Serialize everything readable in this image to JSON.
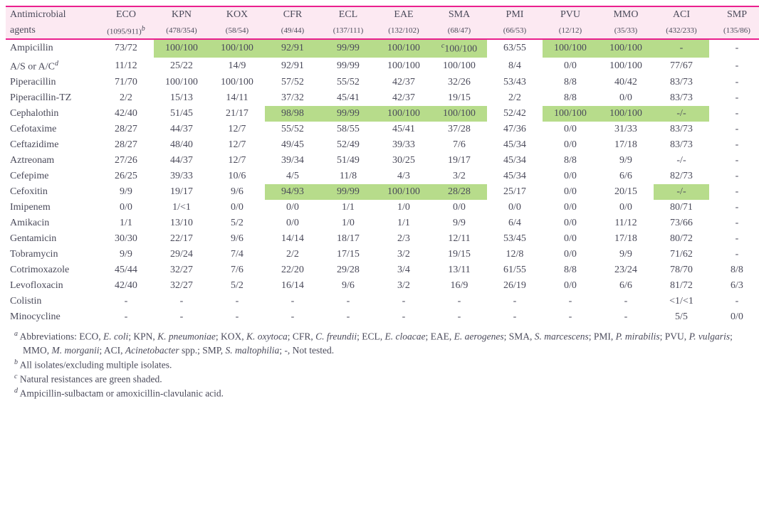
{
  "header": {
    "label_line1": "Antimicrobial",
    "label_line2": "agents",
    "cols": [
      {
        "code": "ECO",
        "n": "(1095/911)",
        "sup": "b"
      },
      {
        "code": "KPN",
        "n": "(478/354)",
        "sup": ""
      },
      {
        "code": "KOX",
        "n": "(58/54)",
        "sup": ""
      },
      {
        "code": "CFR",
        "n": "(49/44)",
        "sup": ""
      },
      {
        "code": "ECL",
        "n": "(137/111)",
        "sup": ""
      },
      {
        "code": "EAE",
        "n": "(132/102)",
        "sup": ""
      },
      {
        "code": "SMA",
        "n": "(68/47)",
        "sup": ""
      },
      {
        "code": "PMI",
        "n": "(66/53)",
        "sup": ""
      },
      {
        "code": "PVU",
        "n": "(12/12)",
        "sup": ""
      },
      {
        "code": "MMO",
        "n": "(35/33)",
        "sup": ""
      },
      {
        "code": "ACI",
        "n": "(432/233)",
        "sup": ""
      },
      {
        "code": "SMP",
        "n": "(135/86)",
        "sup": ""
      }
    ]
  },
  "rows": [
    {
      "agent": "Ampicillin",
      "cells": [
        {
          "v": "73/72"
        },
        {
          "v": "100/100",
          "hl": true
        },
        {
          "v": "100/100",
          "hl": true
        },
        {
          "v": "92/91",
          "hl": true
        },
        {
          "v": "99/99",
          "hl": true
        },
        {
          "v": "100/100",
          "hl": true
        },
        {
          "v": "100/100",
          "hl": true,
          "presup": "c"
        },
        {
          "v": "63/55"
        },
        {
          "v": "100/100",
          "hl": true
        },
        {
          "v": "100/100",
          "hl": true
        },
        {
          "v": "-",
          "hl": true
        },
        {
          "v": "-"
        }
      ]
    },
    {
      "agent": "A/S or A/C",
      "sup": "d",
      "cells": [
        {
          "v": "11/12"
        },
        {
          "v": "25/22"
        },
        {
          "v": "14/9"
        },
        {
          "v": "92/91"
        },
        {
          "v": "99/99"
        },
        {
          "v": "100/100"
        },
        {
          "v": "100/100"
        },
        {
          "v": "8/4"
        },
        {
          "v": "0/0"
        },
        {
          "v": "100/100"
        },
        {
          "v": "77/67"
        },
        {
          "v": "-"
        }
      ]
    },
    {
      "agent": "Piperacillin",
      "cells": [
        {
          "v": "71/70"
        },
        {
          "v": "100/100"
        },
        {
          "v": "100/100"
        },
        {
          "v": "57/52"
        },
        {
          "v": "55/52"
        },
        {
          "v": "42/37"
        },
        {
          "v": "32/26"
        },
        {
          "v": "53/43"
        },
        {
          "v": "8/8"
        },
        {
          "v": "40/42"
        },
        {
          "v": "83/73"
        },
        {
          "v": "-"
        }
      ]
    },
    {
      "agent": "Piperacillin-TZ",
      "cells": [
        {
          "v": "2/2"
        },
        {
          "v": "15/13"
        },
        {
          "v": "14/11"
        },
        {
          "v": "37/32"
        },
        {
          "v": "45/41"
        },
        {
          "v": "42/37"
        },
        {
          "v": "19/15"
        },
        {
          "v": "2/2"
        },
        {
          "v": "8/8"
        },
        {
          "v": "0/0"
        },
        {
          "v": "83/73"
        },
        {
          "v": "-"
        }
      ]
    },
    {
      "agent": "Cephalothin",
      "cells": [
        {
          "v": "42/40"
        },
        {
          "v": "51/45"
        },
        {
          "v": "21/17"
        },
        {
          "v": "98/98",
          "hl": true
        },
        {
          "v": "99/99",
          "hl": true
        },
        {
          "v": "100/100",
          "hl": true
        },
        {
          "v": "100/100",
          "hl": true
        },
        {
          "v": "52/42"
        },
        {
          "v": "100/100",
          "hl": true
        },
        {
          "v": "100/100",
          "hl": true
        },
        {
          "v": "-/-",
          "hl": true
        },
        {
          "v": "-"
        }
      ]
    },
    {
      "agent": "Cefotaxime",
      "cells": [
        {
          "v": "28/27"
        },
        {
          "v": "44/37"
        },
        {
          "v": "12/7"
        },
        {
          "v": "55/52"
        },
        {
          "v": "58/55"
        },
        {
          "v": "45/41"
        },
        {
          "v": "37/28"
        },
        {
          "v": "47/36"
        },
        {
          "v": "0/0"
        },
        {
          "v": "31/33"
        },
        {
          "v": "83/73"
        },
        {
          "v": "-"
        }
      ]
    },
    {
      "agent": "Ceftazidime",
      "cells": [
        {
          "v": "28/27"
        },
        {
          "v": "48/40"
        },
        {
          "v": "12/7"
        },
        {
          "v": "49/45"
        },
        {
          "v": "52/49"
        },
        {
          "v": "39/33"
        },
        {
          "v": "7/6"
        },
        {
          "v": "45/34"
        },
        {
          "v": "0/0"
        },
        {
          "v": "17/18"
        },
        {
          "v": "83/73"
        },
        {
          "v": "-"
        }
      ]
    },
    {
      "agent": "Aztreonam",
      "cells": [
        {
          "v": "27/26"
        },
        {
          "v": "44/37"
        },
        {
          "v": "12/7"
        },
        {
          "v": "39/34"
        },
        {
          "v": "51/49"
        },
        {
          "v": "30/25"
        },
        {
          "v": "19/17"
        },
        {
          "v": "45/34"
        },
        {
          "v": "8/8"
        },
        {
          "v": "9/9"
        },
        {
          "v": "-/-"
        },
        {
          "v": "-"
        }
      ]
    },
    {
      "agent": "Cefepime",
      "cells": [
        {
          "v": "26/25"
        },
        {
          "v": "39/33"
        },
        {
          "v": "10/6"
        },
        {
          "v": "4/5"
        },
        {
          "v": "11/8"
        },
        {
          "v": "4/3"
        },
        {
          "v": "3/2"
        },
        {
          "v": "45/34"
        },
        {
          "v": "0/0"
        },
        {
          "v": "6/6"
        },
        {
          "v": "82/73"
        },
        {
          "v": "-"
        }
      ]
    },
    {
      "agent": "Cefoxitin",
      "cells": [
        {
          "v": "9/9"
        },
        {
          "v": "19/17"
        },
        {
          "v": "9/6"
        },
        {
          "v": "94/93",
          "hl": true
        },
        {
          "v": "99/99",
          "hl": true
        },
        {
          "v": "100/100",
          "hl": true
        },
        {
          "v": "28/28",
          "hl": true
        },
        {
          "v": "25/17"
        },
        {
          "v": "0/0"
        },
        {
          "v": "20/15"
        },
        {
          "v": "-/-",
          "hl": true
        },
        {
          "v": "-"
        }
      ]
    },
    {
      "agent": "Imipenem",
      "cells": [
        {
          "v": "0/0"
        },
        {
          "v": "1/<1"
        },
        {
          "v": "0/0"
        },
        {
          "v": "0/0"
        },
        {
          "v": "1/1"
        },
        {
          "v": "1/0"
        },
        {
          "v": "0/0"
        },
        {
          "v": "0/0"
        },
        {
          "v": "0/0"
        },
        {
          "v": "0/0"
        },
        {
          "v": "80/71"
        },
        {
          "v": "-"
        }
      ]
    },
    {
      "agent": "Amikacin",
      "cells": [
        {
          "v": "1/1"
        },
        {
          "v": "13/10"
        },
        {
          "v": "5/2"
        },
        {
          "v": "0/0"
        },
        {
          "v": "1/0"
        },
        {
          "v": "1/1"
        },
        {
          "v": "9/9"
        },
        {
          "v": "6/4"
        },
        {
          "v": "0/0"
        },
        {
          "v": "11/12"
        },
        {
          "v": "73/66"
        },
        {
          "v": "-"
        }
      ]
    },
    {
      "agent": "Gentamicin",
      "cells": [
        {
          "v": "30/30"
        },
        {
          "v": "22/17"
        },
        {
          "v": "9/6"
        },
        {
          "v": "14/14"
        },
        {
          "v": "18/17"
        },
        {
          "v": "2/3"
        },
        {
          "v": "12/11"
        },
        {
          "v": "53/45"
        },
        {
          "v": "0/0"
        },
        {
          "v": "17/18"
        },
        {
          "v": "80/72"
        },
        {
          "v": "-"
        }
      ]
    },
    {
      "agent": "Tobramycin",
      "cells": [
        {
          "v": "9/9"
        },
        {
          "v": "29/24"
        },
        {
          "v": "7/4"
        },
        {
          "v": "2/2"
        },
        {
          "v": "17/15"
        },
        {
          "v": "3/2"
        },
        {
          "v": "19/15"
        },
        {
          "v": "12/8"
        },
        {
          "v": "0/0"
        },
        {
          "v": "9/9"
        },
        {
          "v": "71/62"
        },
        {
          "v": "-"
        }
      ]
    },
    {
      "agent": "Cotrimoxazole",
      "cells": [
        {
          "v": "45/44"
        },
        {
          "v": "32/27"
        },
        {
          "v": "7/6"
        },
        {
          "v": "22/20"
        },
        {
          "v": "29/28"
        },
        {
          "v": "3/4"
        },
        {
          "v": "13/11"
        },
        {
          "v": "61/55"
        },
        {
          "v": "8/8"
        },
        {
          "v": "23/24"
        },
        {
          "v": "78/70"
        },
        {
          "v": "8/8"
        }
      ]
    },
    {
      "agent": "Levofloxacin",
      "cells": [
        {
          "v": "42/40"
        },
        {
          "v": "32/27"
        },
        {
          "v": "5/2"
        },
        {
          "v": "16/14"
        },
        {
          "v": "9/6"
        },
        {
          "v": "3/2"
        },
        {
          "v": "16/9"
        },
        {
          "v": "26/19"
        },
        {
          "v": "0/0"
        },
        {
          "v": "6/6"
        },
        {
          "v": "81/72"
        },
        {
          "v": "6/3"
        }
      ]
    },
    {
      "agent": "Colistin",
      "cells": [
        {
          "v": "-"
        },
        {
          "v": "-"
        },
        {
          "v": "-"
        },
        {
          "v": "-"
        },
        {
          "v": "-"
        },
        {
          "v": "-"
        },
        {
          "v": "-"
        },
        {
          "v": "-"
        },
        {
          "v": "-"
        },
        {
          "v": "-"
        },
        {
          "v": "<1/<1"
        },
        {
          "v": "-"
        }
      ]
    },
    {
      "agent": "Minocycline",
      "cells": [
        {
          "v": "-"
        },
        {
          "v": "-"
        },
        {
          "v": "-"
        },
        {
          "v": "-"
        },
        {
          "v": "-"
        },
        {
          "v": "-"
        },
        {
          "v": "-"
        },
        {
          "v": "-"
        },
        {
          "v": "-"
        },
        {
          "v": "-"
        },
        {
          "v": "5/5"
        },
        {
          "v": "0/0"
        }
      ]
    }
  ],
  "notes": {
    "a_pre": "Abbreviations: ECO, ",
    "a_items": [
      {
        "it": "E. coli",
        "post": "; KPN, "
      },
      {
        "it": "K. pneumoniae",
        "post": "; KOX, "
      },
      {
        "it": "K. oxytoca",
        "post": "; CFR, "
      },
      {
        "it": "C. freundii",
        "post": "; ECL, "
      },
      {
        "it": "E. cloacae",
        "post": "; EAE, "
      },
      {
        "it": "E. aerogenes",
        "post": "; SMA, "
      },
      {
        "it": "S. marcescens",
        "post": "; PMI, "
      },
      {
        "it": "P. mirabilis",
        "post": "; PVU, "
      },
      {
        "it": "P. vulgaris",
        "post": "; MMO, "
      },
      {
        "it": "M. morganii",
        "post": "; ACI, "
      },
      {
        "it": "Acinetobacter",
        "post": " spp.; SMP, "
      },
      {
        "it": "S. maltophilia",
        "post": "; -, Not tested."
      }
    ],
    "b": "All isolates/excluding multiple isolates.",
    "c": "Natural resistances are green shaded.",
    "d": "Ampicillin-sulbactam or amoxicillin-clavulanic acid."
  }
}
